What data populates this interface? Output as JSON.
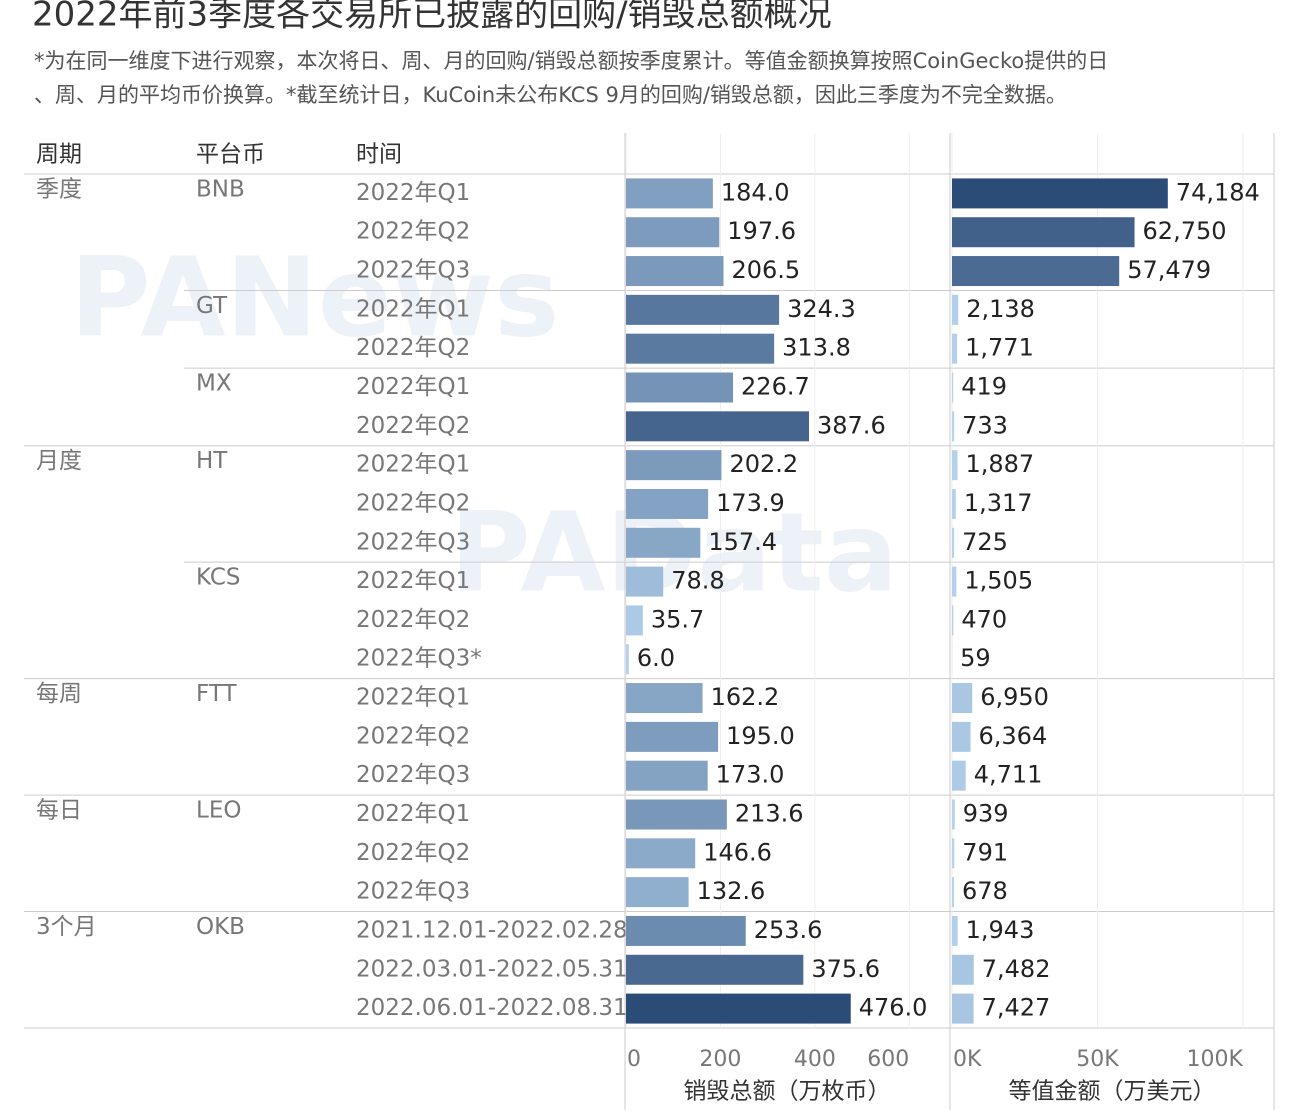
{
  "chart_data": {
    "type": "bar",
    "title": "2022年前3季度各交易所已披露的回购/销毁总额概况",
    "subtitle": [
      "*为在同一维度下进行观察，本次将日、周、月的回购/销毁总额按季度累计。等值金额换算按照CoinGecko提供的日",
      "、周、月的平均币价换算。*截至统计日，KuCoin未公布KCS 9月的回购/销毁总额，因此三季度为不完全数据。"
    ],
    "row_headers": [
      "周期",
      "平台币",
      "时间"
    ],
    "watermarks": [
      "PANews",
      "PAData"
    ],
    "periods": [
      "季度",
      null,
      null,
      null,
      null,
      null,
      null,
      "月度",
      null,
      null,
      null,
      null,
      null,
      "每周",
      null,
      null,
      "每日",
      null,
      null,
      "3个月",
      null,
      null
    ],
    "coins": [
      "BNB",
      null,
      null,
      "GT",
      null,
      "MX",
      null,
      "HT",
      null,
      null,
      "KCS",
      null,
      null,
      "FTT",
      null,
      null,
      "LEO",
      null,
      null,
      "OKB",
      null,
      null
    ],
    "categories": [
      "2022年Q1",
      "2022年Q2",
      "2022年Q3",
      "2022年Q1",
      "2022年Q2",
      "2022年Q1",
      "2022年Q2",
      "2022年Q1",
      "2022年Q2",
      "2022年Q3",
      "2022年Q1",
      "2022年Q2",
      "2022年Q3*",
      "2022年Q1",
      "2022年Q2",
      "2022年Q3",
      "2022年Q1",
      "2022年Q2",
      "2022年Q3",
      "2021.12.01-2022.02.28",
      "2022.03.01-2022.05.31",
      "2022.06.01-2022.08.31"
    ],
    "color_scale": [
      "#b6d4ee",
      "#2c4c78"
    ],
    "grid": true,
    "series": [
      {
        "name": "销毁总额（万枚币）",
        "values": [
          184.0,
          197.6,
          206.5,
          324.3,
          313.8,
          226.7,
          387.6,
          202.2,
          173.9,
          157.4,
          78.8,
          35.7,
          6.0,
          162.2,
          195.0,
          173.0,
          213.6,
          146.6,
          132.6,
          253.6,
          375.6,
          476.0
        ],
        "value_labels": [
          "184.0",
          "197.6",
          "206.5",
          "324.3",
          "313.8",
          "226.7",
          "387.6",
          "202.2",
          "173.9",
          "157.4",
          "78.8",
          "35.7",
          "6.0",
          "162.2",
          "195.0",
          "173.0",
          "213.6",
          "146.6",
          "132.6",
          "253.6",
          "375.6",
          "476.0"
        ],
        "xlim": [
          0,
          682
        ],
        "xticks": [
          0,
          200,
          400,
          600
        ]
      },
      {
        "name": "等值金额（万美元）",
        "values": [
          74184,
          62750,
          57479,
          2138,
          1771,
          419,
          733,
          1887,
          1317,
          725,
          1505,
          470,
          59,
          6950,
          6364,
          4711,
          939,
          791,
          678,
          1943,
          7482,
          7427
        ],
        "value_labels": [
          "74,184",
          "62,750",
          "57,479",
          "2,138",
          "1,771",
          "419",
          "733",
          "1,887",
          "1,317",
          "725",
          "1,505",
          "470",
          "59",
          "6,950",
          "6,364",
          "4,711",
          "939",
          "791",
          "678",
          "1,943",
          "7,482",
          "7,427"
        ],
        "xlim": [
          0,
          110000
        ],
        "xticks": [
          {
            "value": 0,
            "label": "0K"
          },
          {
            "value": 50000,
            "label": "50K"
          },
          {
            "value": 100000,
            "label": "100K"
          }
        ]
      }
    ]
  }
}
